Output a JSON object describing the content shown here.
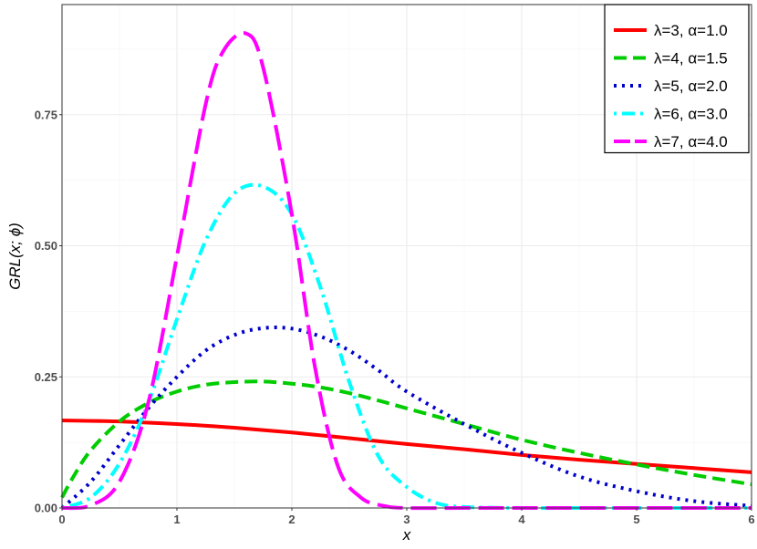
{
  "chart_data": {
    "type": "line",
    "xlabel": "x",
    "ylabel": "GRL(x; ϕ)",
    "xlim": [
      0,
      6
    ],
    "ylim": [
      0,
      0.96
    ],
    "x_ticks": [
      "0",
      "1",
      "2",
      "3",
      "4",
      "5",
      "6"
    ],
    "y_ticks": [
      "0.00",
      "0.25",
      "0.50",
      "0.75"
    ],
    "grid": true,
    "legend_position": "top-right",
    "series": [
      {
        "name": "λ=3, α=1.0",
        "color": "#ff0000",
        "style": "solid",
        "x": [
          0,
          0.5,
          1,
          1.5,
          2,
          2.5,
          3,
          3.5,
          4,
          4.5,
          5,
          5.5,
          6
        ],
        "y": [
          0.167,
          0.165,
          0.16,
          0.153,
          0.144,
          0.133,
          0.122,
          0.112,
          0.101,
          0.092,
          0.084,
          0.076,
          0.068
        ]
      },
      {
        "name": "λ=4, α=1.5",
        "color": "#00cc00",
        "style": "dashed",
        "x": [
          0,
          0.1,
          0.25,
          0.5,
          0.75,
          1,
          1.25,
          1.5,
          1.75,
          2,
          2.25,
          2.5,
          2.75,
          3,
          3.5,
          4,
          4.5,
          5,
          5.5,
          6
        ],
        "y": [
          0.02,
          0.06,
          0.11,
          0.165,
          0.2,
          0.222,
          0.235,
          0.24,
          0.241,
          0.237,
          0.23,
          0.219,
          0.205,
          0.19,
          0.16,
          0.13,
          0.105,
          0.083,
          0.063,
          0.045
        ]
      },
      {
        "name": "λ=5, α=2.0",
        "color": "#0000cc",
        "style": "dotted",
        "x": [
          0,
          0.25,
          0.5,
          0.75,
          1,
          1.25,
          1.5,
          1.75,
          2,
          2.25,
          2.5,
          2.75,
          3,
          3.5,
          4,
          4.5,
          5,
          5.5,
          6
        ],
        "y": [
          0.0,
          0.05,
          0.12,
          0.19,
          0.25,
          0.3,
          0.33,
          0.343,
          0.342,
          0.327,
          0.3,
          0.263,
          0.222,
          0.16,
          0.105,
          0.06,
          0.032,
          0.013,
          0.004
        ]
      },
      {
        "name": "λ=6, α=3.0",
        "color": "#00ffff",
        "style": "dotdash",
        "x": [
          0,
          0.25,
          0.5,
          0.75,
          1,
          1.25,
          1.5,
          1.75,
          2,
          2.25,
          2.5,
          2.75,
          3,
          3.25,
          3.5,
          4,
          4.5,
          5,
          6
        ],
        "y": [
          0.0,
          0.02,
          0.085,
          0.2,
          0.36,
          0.51,
          0.6,
          0.613,
          0.56,
          0.42,
          0.24,
          0.1,
          0.04,
          0.01,
          0.002,
          0.0,
          0.0,
          0.0,
          0.0
        ]
      },
      {
        "name": "λ=7, α=4.0",
        "color": "#ff00ff",
        "style": "longdash",
        "x": [
          0,
          0.25,
          0.5,
          0.75,
          1,
          1.25,
          1.4,
          1.6,
          1.75,
          2,
          2.2,
          2.4,
          2.6,
          2.8,
          3,
          3.5,
          4,
          5,
          6
        ],
        "y": [
          0.0,
          0.005,
          0.05,
          0.2,
          0.48,
          0.77,
          0.87,
          0.905,
          0.84,
          0.56,
          0.27,
          0.08,
          0.02,
          0.004,
          0.0,
          0.0,
          0.0,
          0.0,
          0.0
        ]
      }
    ]
  }
}
